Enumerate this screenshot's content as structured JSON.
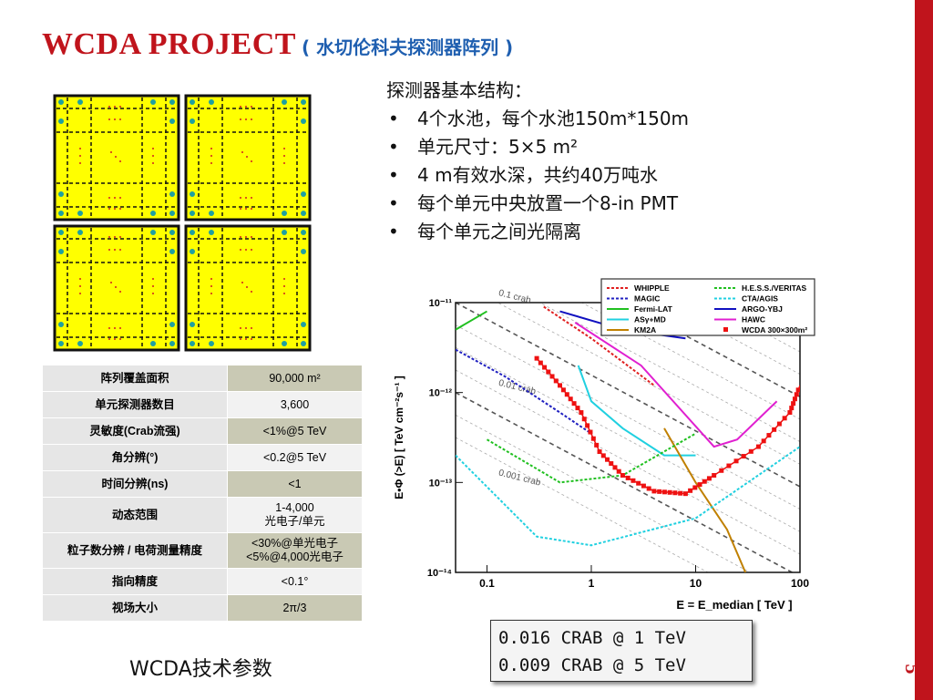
{
  "slide": {
    "title_main": "WCDA PROJECT",
    "title_sub": "( 水切伦科夫探测器阵列 )",
    "page_number": "5",
    "accent": "#c0141c",
    "sub_accent": "#1f5fb0"
  },
  "bullets": {
    "lead": "探测器基本结构：",
    "items": [
      "4个水池，每个水池150m*150m",
      "单元尺寸：5×5 m²",
      "4 m有效水深，共约40万吨水",
      "每个单元中央放置一个8-in PMT",
      "每个单元之间光隔离"
    ]
  },
  "table": {
    "rows": [
      {
        "key": "阵列覆盖面积",
        "value": "90,000 m²"
      },
      {
        "key": "单元探测器数目",
        "value": "3,600"
      },
      {
        "key": "灵敏度(Crab流强)",
        "value": "<1%@5 TeV"
      },
      {
        "key": "角分辨(°)",
        "value": "<0.2@5 TeV"
      },
      {
        "key": "时间分辨(ns)",
        "value": "<1"
      },
      {
        "key": "动态范围",
        "value": "1-4,000\n光电子/单元"
      },
      {
        "key": "粒子数分辨 / 电荷测量精度",
        "value": "<30%@单光电子\n<5%@4,000光电子"
      },
      {
        "key": "指向精度",
        "value": "<0.1°"
      },
      {
        "key": "视场大小",
        "value": "2π/3"
      }
    ]
  },
  "caption": "WCDA技术参数",
  "crab_note": {
    "line1": "0.016 CRAB @ 1 TeV",
    "line2": "0.009 CRAB @ 5 TeV"
  },
  "chart_data": {
    "type": "line",
    "xlabel": "E = E_median [ TeV ]",
    "ylabel": "E•Φ (>E) [ TeV cm⁻²s⁻¹ ]",
    "xscale": "log",
    "yscale": "log",
    "xlim": [
      0.05,
      100
    ],
    "ylim": [
      1e-14,
      1e-11
    ],
    "x_ticks": [
      "0.1",
      "1",
      "10",
      "100"
    ],
    "y_ticks": [
      "10⁻¹¹",
      "10⁻¹²",
      "10⁻¹³",
      "10⁻¹⁴"
    ],
    "crab_lines": [
      "0.1 crab",
      "0.01 crab",
      "0.001 crab"
    ],
    "legend_position": "top",
    "series": [
      {
        "name": "WHIPPLE",
        "color": "#e02020",
        "dash": "dotted",
        "points": [
          [
            0.35,
            9e-12
          ],
          [
            1,
            4e-12
          ],
          [
            4,
            1.2e-12
          ]
        ]
      },
      {
        "name": "MAGIC",
        "color": "#2020c0",
        "dash": "dotted",
        "points": [
          [
            0.05,
            3e-12
          ],
          [
            0.15,
            1.5e-12
          ],
          [
            0.5,
            6e-13
          ],
          [
            1,
            3.5e-13
          ]
        ]
      },
      {
        "name": "Fermi-LAT",
        "color": "#20c020",
        "dash": "solid",
        "points": [
          [
            0.05,
            5e-12
          ],
          [
            0.1,
            8e-12
          ]
        ]
      },
      {
        "name": "ASγ+MD",
        "color": "#20d0e0",
        "dash": "solid",
        "points": [
          [
            0.75,
            2e-12
          ],
          [
            1,
            8e-13
          ],
          [
            2,
            4e-13
          ],
          [
            5,
            2e-13
          ],
          [
            10,
            2e-13
          ]
        ]
      },
      {
        "name": "KM2A",
        "color": "#c08000",
        "dash": "solid",
        "points": [
          [
            5,
            4e-13
          ],
          [
            10,
            1e-13
          ],
          [
            20,
            3e-14
          ],
          [
            30,
            1e-14
          ]
        ]
      },
      {
        "name": "H.E.S.S./VERITAS",
        "color": "#20c020",
        "dash": "dotted",
        "points": [
          [
            0.1,
            3e-13
          ],
          [
            0.5,
            1e-13
          ],
          [
            2,
            1.2e-13
          ],
          [
            10,
            3.5e-13
          ]
        ]
      },
      {
        "name": "CTA/AGIS",
        "color": "#20d0e0",
        "dash": "dotted",
        "points": [
          [
            0.05,
            2e-13
          ],
          [
            0.3,
            2.5e-14
          ],
          [
            1,
            2e-14
          ],
          [
            10,
            4e-14
          ],
          [
            100,
            2.5e-13
          ]
        ]
      },
      {
        "name": "ARGO-YBJ",
        "color": "#1010c0",
        "dash": "solid",
        "points": [
          [
            0.5,
            8e-12
          ],
          [
            2,
            5e-12
          ],
          [
            8,
            4e-12
          ]
        ]
      },
      {
        "name": "HAWC",
        "color": "#e020d0",
        "dash": "solid",
        "points": [
          [
            0.7,
            6e-12
          ],
          [
            3,
            2e-12
          ],
          [
            15,
            2.5e-13
          ],
          [
            25,
            3e-13
          ],
          [
            60,
            8e-13
          ]
        ]
      },
      {
        "name": "WCDA 300×300m²",
        "color": "#ee1111",
        "dash": "markers",
        "points": [
          [
            0.3,
            2.4e-12
          ],
          [
            0.5,
            1.2e-12
          ],
          [
            0.8,
            6e-13
          ],
          [
            1.2,
            2.2e-13
          ],
          [
            2,
            1.2e-13
          ],
          [
            4,
            8e-14
          ],
          [
            8,
            7.5e-14
          ],
          [
            15,
            1.2e-13
          ],
          [
            40,
            2.5e-13
          ],
          [
            80,
            6e-13
          ],
          [
            100,
            1.2e-12
          ]
        ]
      }
    ]
  }
}
